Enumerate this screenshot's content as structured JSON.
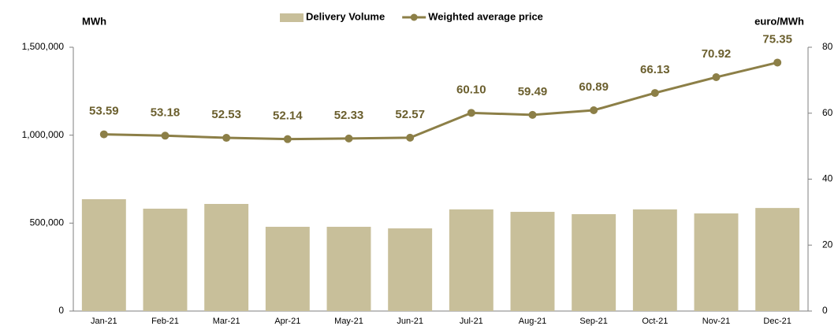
{
  "chart_data": {
    "type": "bar_line",
    "y_label": "MWh",
    "y2_label": "euro/MWh",
    "categories": [
      "Jan-21",
      "Feb-21",
      "Mar-21",
      "Apr-21",
      "May-21",
      "Jun-21",
      "Jul-21",
      "Aug-21",
      "Sep-21",
      "Oct-21",
      "Nov-21",
      "Dec-21"
    ],
    "series": [
      {
        "name": "Delivery Volume",
        "type": "bar",
        "color": "#c8bf9a",
        "axis": "y",
        "values": [
          636000,
          582000,
          609000,
          479000,
          479000,
          470000,
          578000,
          564000,
          551000,
          578000,
          555000,
          586000
        ]
      },
      {
        "name": "Weighted average price",
        "type": "line",
        "color": "#8c7f47",
        "axis": "y2",
        "values": [
          53.59,
          53.18,
          52.53,
          52.14,
          52.33,
          52.57,
          60.1,
          59.49,
          60.89,
          66.13,
          70.92,
          75.35
        ],
        "value_labels": [
          "53.59",
          "53.18",
          "52.53",
          "52.14",
          "52.33",
          "52.57",
          "60.10",
          "59.49",
          "60.89",
          "66.13",
          "70.92",
          "75.35"
        ]
      }
    ],
    "ylim": [
      0,
      1500000
    ],
    "yticks": [
      0,
      {
        "value": 500000,
        "label": "500,000"
      },
      {
        "value": 1000000,
        "label": "1,000,000"
      },
      {
        "value": 1500000,
        "label": "1,500,000"
      }
    ],
    "y2lim": [
      0,
      80
    ],
    "y2ticks": [
      0,
      20,
      40,
      60,
      80
    ],
    "legend": "top",
    "grid": false
  }
}
